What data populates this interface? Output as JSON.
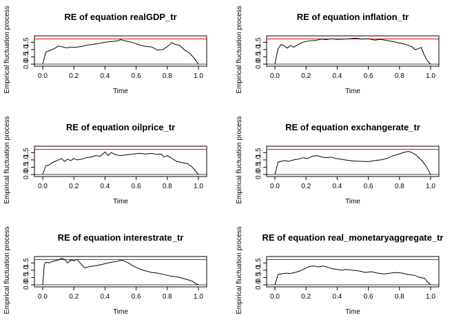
{
  "chart_data": [
    {
      "type": "line",
      "title": "RE of equation realGDP_tr",
      "xlabel": "Time",
      "ylabel": "Empirical fluctuation process",
      "xlim": [
        0,
        1
      ],
      "ylim": [
        0,
        1.8
      ],
      "xticks": [
        "0.0",
        "0.2",
        "0.4",
        "0.6",
        "0.8",
        "1.0"
      ],
      "yticks": [
        "0.0",
        "0.5",
        "1.0",
        "1.5"
      ],
      "boundary": 1.73,
      "boundary_color": "#ff0000",
      "line_color": "#000000",
      "x": [
        0,
        0.02,
        0.04,
        0.06,
        0.08,
        0.1,
        0.12,
        0.14,
        0.16,
        0.18,
        0.2,
        0.24,
        0.28,
        0.32,
        0.36,
        0.4,
        0.44,
        0.48,
        0.5,
        0.52,
        0.55,
        0.58,
        0.62,
        0.66,
        0.7,
        0.74,
        0.77,
        0.8,
        0.83,
        0.85,
        0.88,
        0.91,
        0.94,
        0.97,
        0.99,
        1.0
      ],
      "y": [
        0,
        0.82,
        0.92,
        1.0,
        1.1,
        1.25,
        1.2,
        1.15,
        1.12,
        1.18,
        1.15,
        1.2,
        1.3,
        1.35,
        1.42,
        1.5,
        1.55,
        1.6,
        1.68,
        1.62,
        1.55,
        1.48,
        1.32,
        1.22,
        1.18,
        0.95,
        1.0,
        1.2,
        1.48,
        1.36,
        1.28,
        0.98,
        0.78,
        0.45,
        0.15,
        0
      ]
    },
    {
      "type": "line",
      "title": "RE of equation inflation_tr",
      "xlabel": "Time",
      "ylabel": "Empirical fluctuation process",
      "xlim": [
        0,
        1
      ],
      "ylim": [
        0,
        1.8
      ],
      "xticks": [
        "0.0",
        "0.2",
        "0.4",
        "0.6",
        "0.8",
        "1.0"
      ],
      "yticks": [
        "0.0",
        "0.5",
        "1.0",
        "1.5"
      ],
      "boundary": 1.73,
      "boundary_color": "#ff0000",
      "line_color": "#000000",
      "x": [
        0,
        0.02,
        0.04,
        0.06,
        0.08,
        0.1,
        0.12,
        0.15,
        0.18,
        0.22,
        0.26,
        0.3,
        0.33,
        0.36,
        0.4,
        0.44,
        0.48,
        0.52,
        0.56,
        0.6,
        0.64,
        0.68,
        0.72,
        0.76,
        0.8,
        0.84,
        0.88,
        0.9,
        0.92,
        0.94,
        0.96,
        0.98,
        1.0
      ],
      "y": [
        0,
        1.05,
        1.35,
        1.25,
        1.1,
        1.3,
        1.15,
        1.35,
        1.5,
        1.6,
        1.62,
        1.72,
        1.68,
        1.75,
        1.7,
        1.72,
        1.75,
        1.78,
        1.72,
        1.75,
        1.65,
        1.7,
        1.62,
        1.55,
        1.45,
        1.35,
        1.2,
        1.0,
        1.05,
        1.15,
        0.6,
        0.2,
        0
      ]
    },
    {
      "type": "line",
      "title": "RE of equation oilprice_tr",
      "xlabel": "Time",
      "ylabel": "Empirical fluctuation process",
      "xlim": [
        0,
        1
      ],
      "ylim": [
        0,
        1.8
      ],
      "xticks": [
        "0.0",
        "0.2",
        "0.4",
        "0.6",
        "0.8",
        "1.0"
      ],
      "yticks": [
        "0.0",
        "0.5",
        "1.0",
        "1.5"
      ],
      "boundary": 1.73,
      "boundary_color": "#ff0000",
      "line_color": "#000000",
      "x": [
        0,
        0.02,
        0.04,
        0.06,
        0.08,
        0.1,
        0.12,
        0.14,
        0.16,
        0.18,
        0.2,
        0.22,
        0.25,
        0.28,
        0.31,
        0.34,
        0.37,
        0.4,
        0.42,
        0.44,
        0.47,
        0.5,
        0.54,
        0.58,
        0.62,
        0.66,
        0.7,
        0.73,
        0.76,
        0.78,
        0.8,
        0.83,
        0.86,
        0.9,
        0.93,
        0.96,
        0.98,
        1.0
      ],
      "y": [
        0,
        0.6,
        0.65,
        0.8,
        0.9,
        1.0,
        1.1,
        0.9,
        1.05,
        0.95,
        1.1,
        1.0,
        1.05,
        1.15,
        1.2,
        1.3,
        1.25,
        1.55,
        1.3,
        1.5,
        1.35,
        1.3,
        1.35,
        1.4,
        1.45,
        1.4,
        1.45,
        1.38,
        1.4,
        1.2,
        1.3,
        1.1,
        0.9,
        0.8,
        0.75,
        0.5,
        0.25,
        0
      ]
    },
    {
      "type": "line",
      "title": "RE of equation exchangerate_tr",
      "xlabel": "Time",
      "ylabel": "Empirical fluctuation process",
      "xlim": [
        0,
        1
      ],
      "ylim": [
        0,
        1.8
      ],
      "xticks": [
        "0.0",
        "0.2",
        "0.4",
        "0.6",
        "0.8",
        "1.0"
      ],
      "yticks": [
        "0.0",
        "0.5",
        "1.0",
        "1.5"
      ],
      "boundary": 1.73,
      "boundary_color": "#ff0000",
      "line_color": "#000000",
      "x": [
        0,
        0.02,
        0.04,
        0.06,
        0.09,
        0.12,
        0.15,
        0.18,
        0.21,
        0.24,
        0.27,
        0.3,
        0.33,
        0.36,
        0.39,
        0.42,
        0.45,
        0.48,
        0.52,
        0.56,
        0.6,
        0.64,
        0.68,
        0.72,
        0.75,
        0.78,
        0.81,
        0.84,
        0.86,
        0.88,
        0.91,
        0.94,
        0.97,
        0.99,
        1.0
      ],
      "y": [
        0,
        0.85,
        0.9,
        0.95,
        0.9,
        1.0,
        1.05,
        1.15,
        1.1,
        1.25,
        1.3,
        1.2,
        1.15,
        1.2,
        1.1,
        1.05,
        1.0,
        0.95,
        0.92,
        0.9,
        0.88,
        0.95,
        1.0,
        1.1,
        1.25,
        1.35,
        1.45,
        1.55,
        1.58,
        1.5,
        1.3,
        1.0,
        0.6,
        0.2,
        0
      ]
    },
    {
      "type": "line",
      "title": "RE of equation interestrate_tr",
      "xlabel": "Time",
      "ylabel": "Empirical fluctuation process",
      "xlim": [
        0,
        1
      ],
      "ylim": [
        0,
        1.8
      ],
      "xticks": [
        "0.0",
        "0.2",
        "0.4",
        "0.6",
        "0.8",
        "1.0"
      ],
      "yticks": [
        "0.0",
        "0.5",
        "1.0",
        "1.5"
      ],
      "boundary": 1.73,
      "boundary_color": "#ff0000",
      "line_color": "#000000",
      "x": [
        0,
        0.01,
        0.02,
        0.04,
        0.06,
        0.08,
        0.1,
        0.12,
        0.14,
        0.16,
        0.18,
        0.2,
        0.22,
        0.24,
        0.27,
        0.3,
        0.33,
        0.36,
        0.4,
        0.44,
        0.48,
        0.5,
        0.52,
        0.55,
        0.58,
        0.62,
        0.66,
        0.7,
        0.74,
        0.78,
        0.82,
        0.86,
        0.9,
        0.93,
        0.96,
        0.98,
        1.0
      ],
      "y": [
        0,
        1.4,
        1.55,
        1.5,
        1.6,
        1.65,
        1.7,
        1.82,
        1.75,
        1.5,
        1.7,
        1.65,
        1.75,
        1.5,
        1.15,
        1.25,
        1.3,
        1.35,
        1.45,
        1.55,
        1.6,
        1.7,
        1.65,
        1.5,
        1.3,
        1.1,
        0.95,
        0.85,
        0.8,
        0.7,
        0.6,
        0.55,
        0.45,
        0.35,
        0.25,
        0.1,
        0
      ]
    },
    {
      "type": "line",
      "title": "RE of equation real_monetaryaggregate_tr",
      "xlabel": "Time",
      "ylabel": "Empirical fluctuation process",
      "xlim": [
        0,
        1
      ],
      "ylim": [
        0,
        1.8
      ],
      "xticks": [
        "0.0",
        "0.2",
        "0.4",
        "0.6",
        "0.8",
        "1.0"
      ],
      "yticks": [
        "0.0",
        "0.5",
        "1.0",
        "1.5"
      ],
      "boundary": 1.73,
      "boundary_color": "#ff0000",
      "line_color": "#000000",
      "x": [
        0,
        0.02,
        0.04,
        0.07,
        0.1,
        0.13,
        0.16,
        0.19,
        0.22,
        0.25,
        0.28,
        0.31,
        0.34,
        0.37,
        0.4,
        0.43,
        0.46,
        0.5,
        0.54,
        0.58,
        0.62,
        0.66,
        0.7,
        0.74,
        0.78,
        0.82,
        0.86,
        0.9,
        0.93,
        0.96,
        0.98,
        1.0
      ],
      "y": [
        0,
        0.7,
        0.75,
        0.8,
        0.78,
        0.85,
        0.95,
        1.1,
        1.25,
        1.3,
        1.22,
        1.3,
        1.2,
        1.1,
        1.05,
        1.0,
        1.05,
        1.0,
        0.95,
        0.85,
        0.9,
        0.8,
        0.75,
        0.8,
        0.85,
        0.8,
        0.7,
        0.65,
        0.5,
        0.45,
        0.2,
        0
      ]
    }
  ]
}
